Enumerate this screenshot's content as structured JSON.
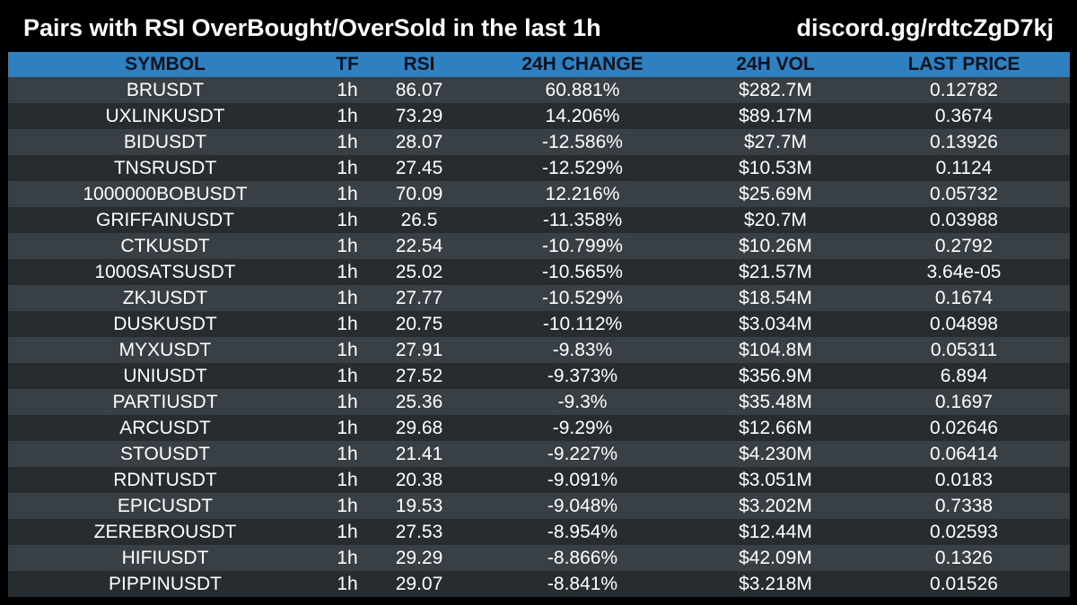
{
  "header": {
    "title": "Pairs with RSI OverBought/OverSold in the last 1h",
    "link": "discord.gg/rdtcZgD7kj"
  },
  "table": {
    "columns": [
      "SYMBOL",
      "TF",
      "RSI",
      "24H CHANGE",
      "24H VOL",
      "LAST PRICE"
    ],
    "rows": [
      [
        "BRUSDT",
        "1h",
        "86.07",
        "60.881%",
        "$282.7M",
        "0.12782"
      ],
      [
        "UXLINKUSDT",
        "1h",
        "73.29",
        "14.206%",
        "$89.17M",
        "0.3674"
      ],
      [
        "BIDUSDT",
        "1h",
        "28.07",
        "-12.586%",
        "$27.7M",
        "0.13926"
      ],
      [
        "TNSRUSDT",
        "1h",
        "27.45",
        "-12.529%",
        "$10.53M",
        "0.1124"
      ],
      [
        "1000000BOBUSDT",
        "1h",
        "70.09",
        "12.216%",
        "$25.69M",
        "0.05732"
      ],
      [
        "GRIFFAINUSDT",
        "1h",
        "26.5",
        "-11.358%",
        "$20.7M",
        "0.03988"
      ],
      [
        "CTKUSDT",
        "1h",
        "22.54",
        "-10.799%",
        "$10.26M",
        "0.2792"
      ],
      [
        "1000SATSUSDT",
        "1h",
        "25.02",
        "-10.565%",
        "$21.57M",
        "3.64e-05"
      ],
      [
        "ZKJUSDT",
        "1h",
        "27.77",
        "-10.529%",
        "$18.54M",
        "0.1674"
      ],
      [
        "DUSKUSDT",
        "1h",
        "20.75",
        "-10.112%",
        "$3.034M",
        "0.04898"
      ],
      [
        "MYXUSDT",
        "1h",
        "27.91",
        "-9.83%",
        "$104.8M",
        "0.05311"
      ],
      [
        "UNIUSDT",
        "1h",
        "27.52",
        "-9.373%",
        "$356.9M",
        "6.894"
      ],
      [
        "PARTIUSDT",
        "1h",
        "25.36",
        "-9.3%",
        "$35.48M",
        "0.1697"
      ],
      [
        "ARCUSDT",
        "1h",
        "29.68",
        "-9.29%",
        "$12.66M",
        "0.02646"
      ],
      [
        "STOUSDT",
        "1h",
        "21.41",
        "-9.227%",
        "$4.230M",
        "0.06414"
      ],
      [
        "RDNTUSDT",
        "1h",
        "20.38",
        "-9.091%",
        "$3.051M",
        "0.0183"
      ],
      [
        "EPICUSDT",
        "1h",
        "19.53",
        "-9.048%",
        "$3.202M",
        "0.7338"
      ],
      [
        "ZEREBROUSDT",
        "1h",
        "27.53",
        "-8.954%",
        "$12.44M",
        "0.02593"
      ],
      [
        "HIFIUSDT",
        "1h",
        "29.29",
        "-8.866%",
        "$42.09M",
        "0.1326"
      ],
      [
        "PIPPINUSDT",
        "1h",
        "29.07",
        "-8.841%",
        "$3.218M",
        "0.01526"
      ]
    ]
  },
  "colors": {
    "background": "#000000",
    "header_row": "#2f80c0",
    "row_light": "#383f45",
    "row_dark": "#272c30",
    "text": "#ffffff"
  }
}
